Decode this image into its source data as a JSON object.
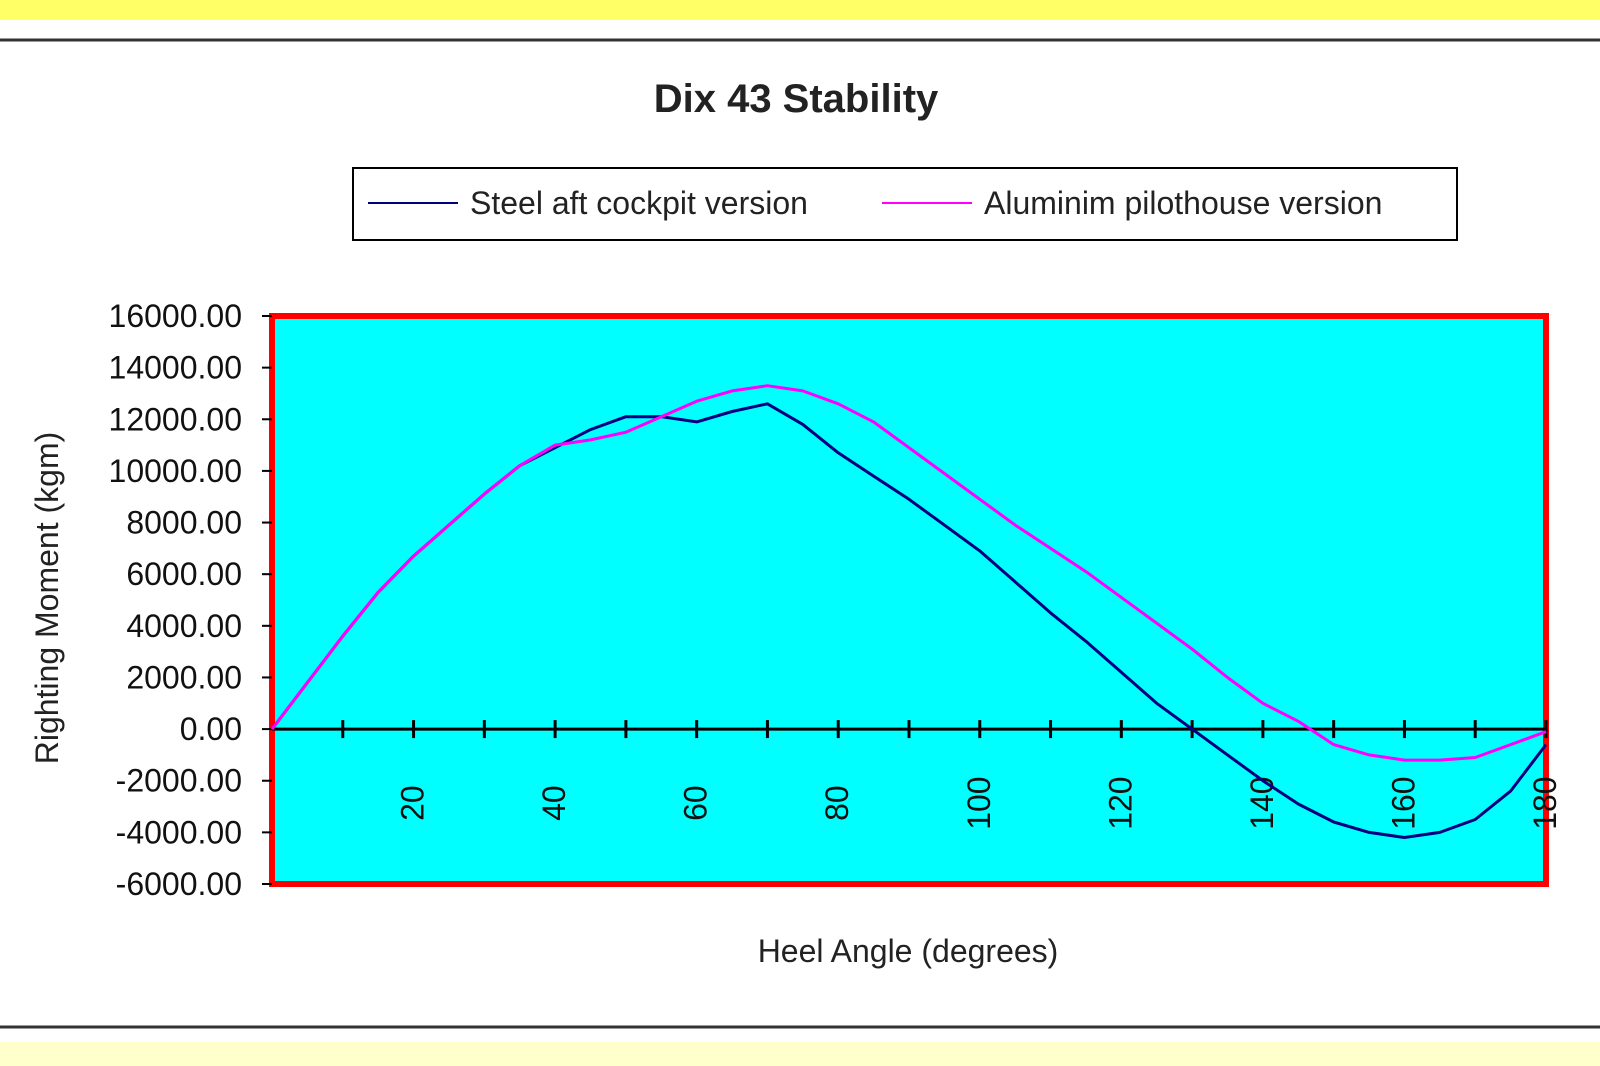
{
  "colors": {
    "top_band": "#ffff66",
    "plot_background": "#00ffff",
    "plot_border": "#ff0000",
    "series_steel": "#000080",
    "series_aluminium": "#ff00ff",
    "axis": "#000000"
  },
  "chart_data": {
    "type": "line",
    "title": "Dix 43 Stability",
    "xlabel": "Heel Angle (degrees)",
    "ylabel": "Righting Moment (kgm)",
    "xlim": [
      0,
      180
    ],
    "ylim": [
      -6000,
      16000
    ],
    "x_ticks": [
      20,
      40,
      60,
      80,
      100,
      120,
      140,
      160,
      180
    ],
    "x_tick_labels": [
      "20",
      "40",
      "60",
      "80",
      "100",
      "120",
      "140",
      "160",
      "180"
    ],
    "y_ticks": [
      16000,
      14000,
      12000,
      10000,
      8000,
      6000,
      4000,
      2000,
      0,
      -2000,
      -4000,
      -6000
    ],
    "y_tick_labels": [
      "16000.00",
      "14000.00",
      "12000.00",
      "10000.00",
      "8000.00",
      "6000.00",
      "4000.00",
      "2000.00",
      "0.00",
      "-2000.00",
      "-4000.00",
      "-6000.00"
    ],
    "grid": false,
    "legend_position": "top",
    "series": [
      {
        "name": "Steel aft cockpit version",
        "color": "#000080",
        "x": [
          0,
          5,
          10,
          15,
          20,
          25,
          30,
          35,
          40,
          45,
          50,
          55,
          60,
          65,
          70,
          75,
          80,
          85,
          90,
          95,
          100,
          105,
          110,
          115,
          120,
          125,
          130,
          135,
          140,
          145,
          150,
          155,
          160,
          165,
          170,
          175,
          180
        ],
        "y": [
          0,
          1800,
          3600,
          5300,
          6700,
          7900,
          9100,
          10200,
          10900,
          11600,
          12100,
          12100,
          11900,
          12300,
          12600,
          11800,
          10700,
          9800,
          8900,
          7900,
          6900,
          5700,
          4500,
          3400,
          2200,
          1000,
          0,
          -1000,
          -2000,
          -2900,
          -3600,
          -4000,
          -4200,
          -4000,
          -3500,
          -2400,
          -600
        ]
      },
      {
        "name": "Aluminim pilothouse version",
        "color": "#ff00ff",
        "x": [
          0,
          5,
          10,
          15,
          20,
          25,
          30,
          35,
          40,
          45,
          50,
          55,
          60,
          65,
          70,
          75,
          80,
          85,
          90,
          95,
          100,
          105,
          110,
          115,
          120,
          125,
          130,
          135,
          140,
          145,
          150,
          155,
          160,
          165,
          170,
          175,
          180
        ],
        "y": [
          0,
          1800,
          3600,
          5300,
          6700,
          7900,
          9100,
          10200,
          11000,
          11200,
          11500,
          12100,
          12700,
          13100,
          13300,
          13100,
          12600,
          11900,
          10900,
          9900,
          8900,
          7900,
          7000,
          6100,
          5100,
          4100,
          3100,
          2000,
          1000,
          300,
          -600,
          -1000,
          -1200,
          -1200,
          -1100,
          -600,
          -100
        ]
      }
    ]
  }
}
